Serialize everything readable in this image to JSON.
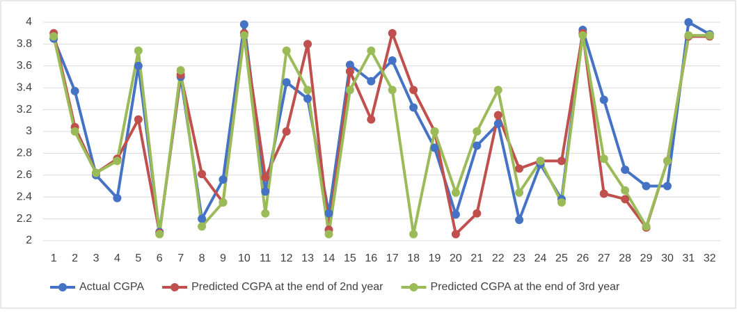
{
  "chart_data": {
    "type": "line",
    "categories": [
      "1",
      "2",
      "3",
      "4",
      "5",
      "6",
      "7",
      "8",
      "9",
      "10",
      "11",
      "12",
      "13",
      "14",
      "15",
      "16",
      "17",
      "18",
      "19",
      "20",
      "21",
      "22",
      "23",
      "24",
      "25",
      "26",
      "27",
      "28",
      "29",
      "30",
      "31",
      "32"
    ],
    "series": [
      {
        "name": "Actual CGPA",
        "color": "#4472c4",
        "values": [
          3.85,
          3.37,
          2.6,
          2.39,
          3.6,
          2.08,
          3.5,
          2.2,
          2.56,
          3.98,
          2.45,
          3.45,
          3.3,
          2.25,
          3.61,
          3.46,
          3.65,
          3.22,
          2.85,
          2.24,
          2.87,
          3.07,
          2.19,
          2.7,
          2.38,
          3.93,
          3.29,
          2.65,
          2.5,
          2.5,
          4.0,
          3.89
        ]
      },
      {
        "name": "Predicted CGPA at the end of 2nd year",
        "color": "#c0504d",
        "values": [
          3.9,
          3.04,
          2.62,
          2.75,
          3.11,
          2.07,
          3.52,
          2.61,
          2.35,
          3.9,
          2.58,
          3.0,
          3.8,
          2.1,
          3.55,
          3.11,
          3.9,
          3.38,
          3.0,
          2.06,
          2.25,
          3.15,
          2.66,
          2.73,
          2.73,
          3.9,
          2.43,
          2.38,
          2.12,
          2.73,
          3.87,
          3.87
        ]
      },
      {
        "name": "Predicted CGPA at the end of 3rd year",
        "color": "#9bbb59",
        "values": [
          3.87,
          3.0,
          2.62,
          2.73,
          3.74,
          2.06,
          3.56,
          2.13,
          2.35,
          3.88,
          2.25,
          3.74,
          3.38,
          2.06,
          3.38,
          3.74,
          3.38,
          2.06,
          3.0,
          2.44,
          3.0,
          3.38,
          2.44,
          2.73,
          2.35,
          3.88,
          2.75,
          2.46,
          2.13,
          2.73,
          3.88,
          3.88
        ]
      }
    ],
    "ylim": [
      2,
      4
    ],
    "yticks": [
      2,
      2.2,
      2.4,
      2.6,
      2.8,
      3,
      3.2,
      3.4,
      3.6,
      3.8,
      4
    ],
    "grid": true,
    "legend": "bottom"
  }
}
